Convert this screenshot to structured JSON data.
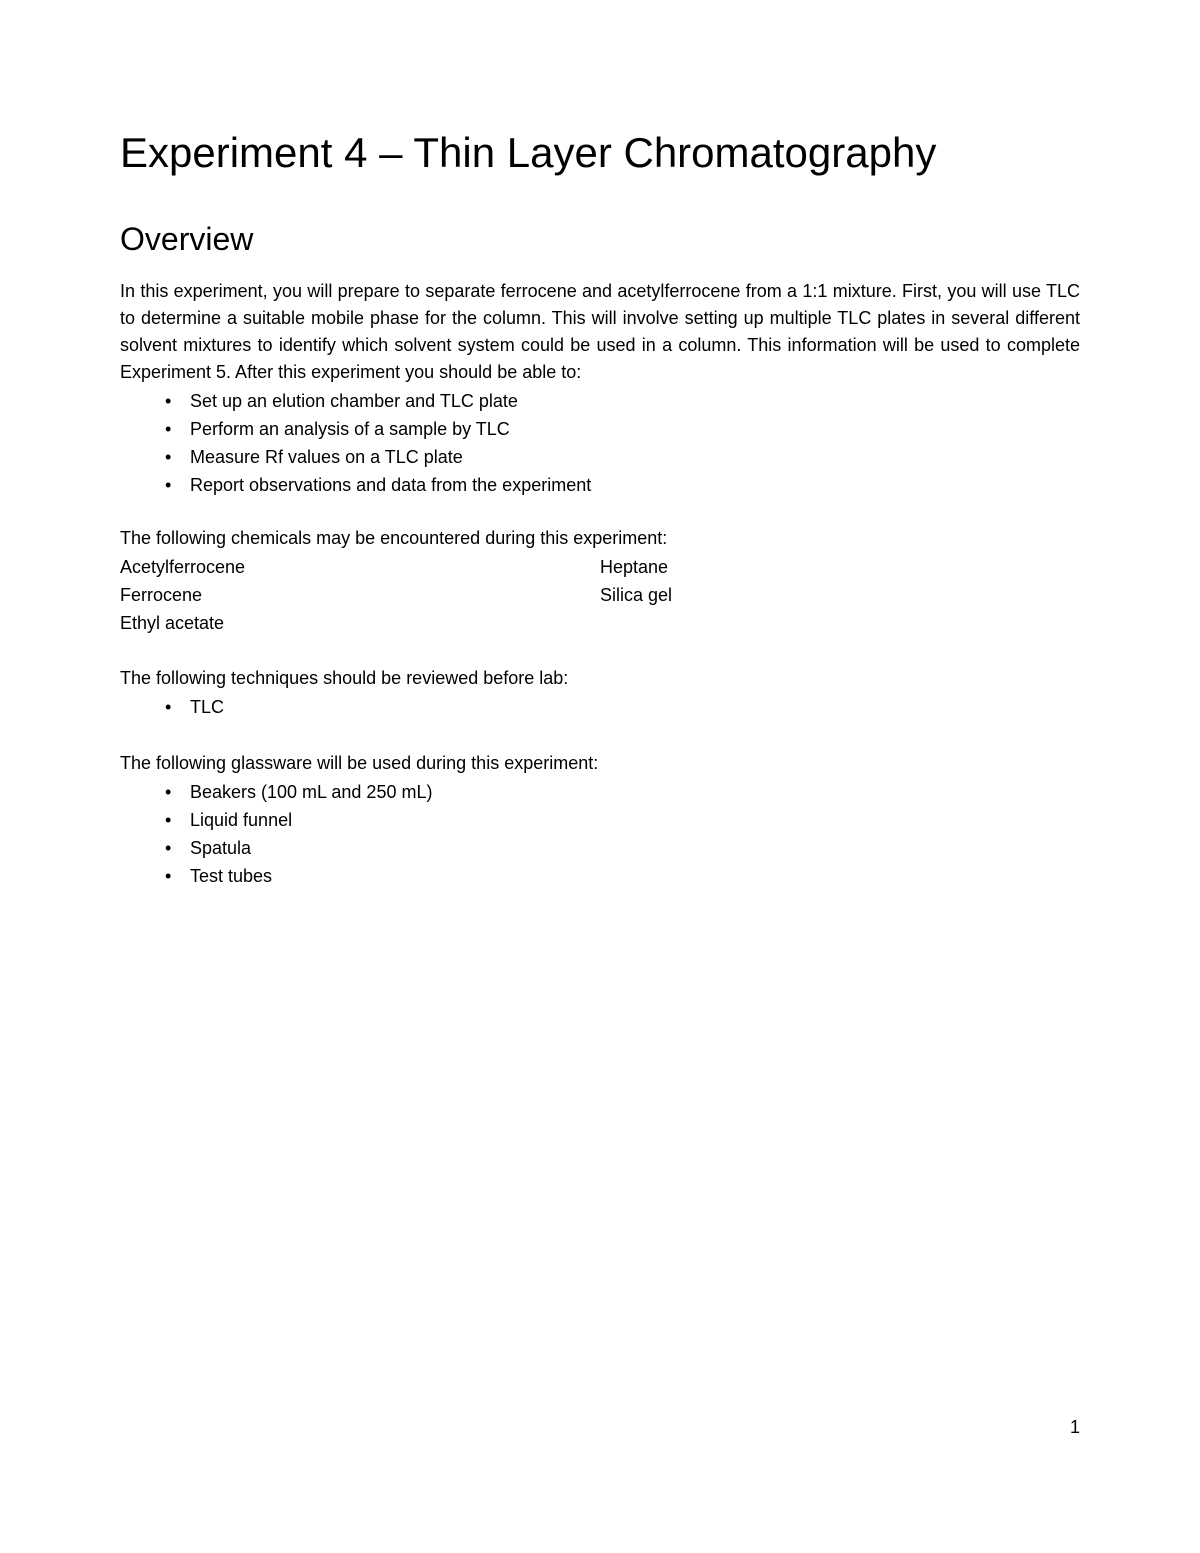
{
  "title": "Experiment 4 – Thin Layer Chromatography",
  "overview": {
    "heading": "Overview",
    "intro": "In this experiment, you will prepare to separate ferrocene and acetylferrocene from a 1:1 mixture. First, you will use TLC to determine a suitable mobile phase for the column. This will involve setting up multiple TLC plates in several different solvent mixtures to identify which solvent system could be used in a column. This information will be used to complete Experiment 5. After this experiment you should be able to:",
    "objectives": [
      "Set up an elution chamber and TLC plate",
      "Perform an analysis of a sample by TLC",
      "Measure Rf values on a TLC plate",
      "Report observations and data from the experiment"
    ],
    "chemicals_label": "The following chemicals may be encountered during this experiment:",
    "chemicals_col1": [
      "Acetylferrocene",
      "Ferrocene",
      "Ethyl acetate"
    ],
    "chemicals_col2": [
      "Heptane",
      "Silica gel"
    ],
    "techniques_label": "The following techniques should be reviewed before lab:",
    "techniques": [
      "TLC"
    ],
    "glassware_label": "The following glassware will be used during this experiment:",
    "glassware": [
      "Beakers (100 mL and 250 mL)",
      "Liquid funnel",
      "Spatula",
      "Test tubes"
    ]
  },
  "page_number": "1"
}
